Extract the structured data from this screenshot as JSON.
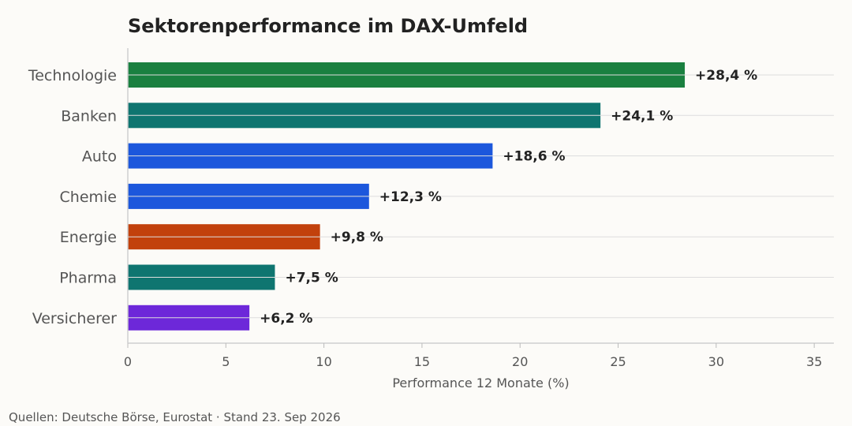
{
  "chart_data": {
    "type": "bar",
    "orientation": "horizontal",
    "title": "Sektorenperformance im DAX-Umfeld",
    "xlabel": "Performance 12 Monate (%)",
    "ylabel": "",
    "xlim": [
      0,
      36
    ],
    "xticks": [
      0,
      5,
      10,
      15,
      20,
      25,
      30,
      35
    ],
    "grid": "horizontal",
    "categories": [
      "Technologie",
      "Banken",
      "Auto",
      "Chemie",
      "Energie",
      "Pharma",
      "Versicherer"
    ],
    "values": [
      28.4,
      24.1,
      18.6,
      12.3,
      9.8,
      7.5,
      6.2
    ],
    "value_labels": [
      "+28,4 %",
      "+24,1 %",
      "+18,6 %",
      "+12,3 %",
      "+9,8 %",
      "+7,5 %",
      "+6,2 %"
    ],
    "colors": [
      "#1a8040",
      "#0f7570",
      "#1c57dc",
      "#1c57dc",
      "#c2410c",
      "#0f7570",
      "#6d28d9"
    ],
    "source": "Quellen: Deutsche Börse, Eurostat · Stand 23. Sep 2026"
  }
}
